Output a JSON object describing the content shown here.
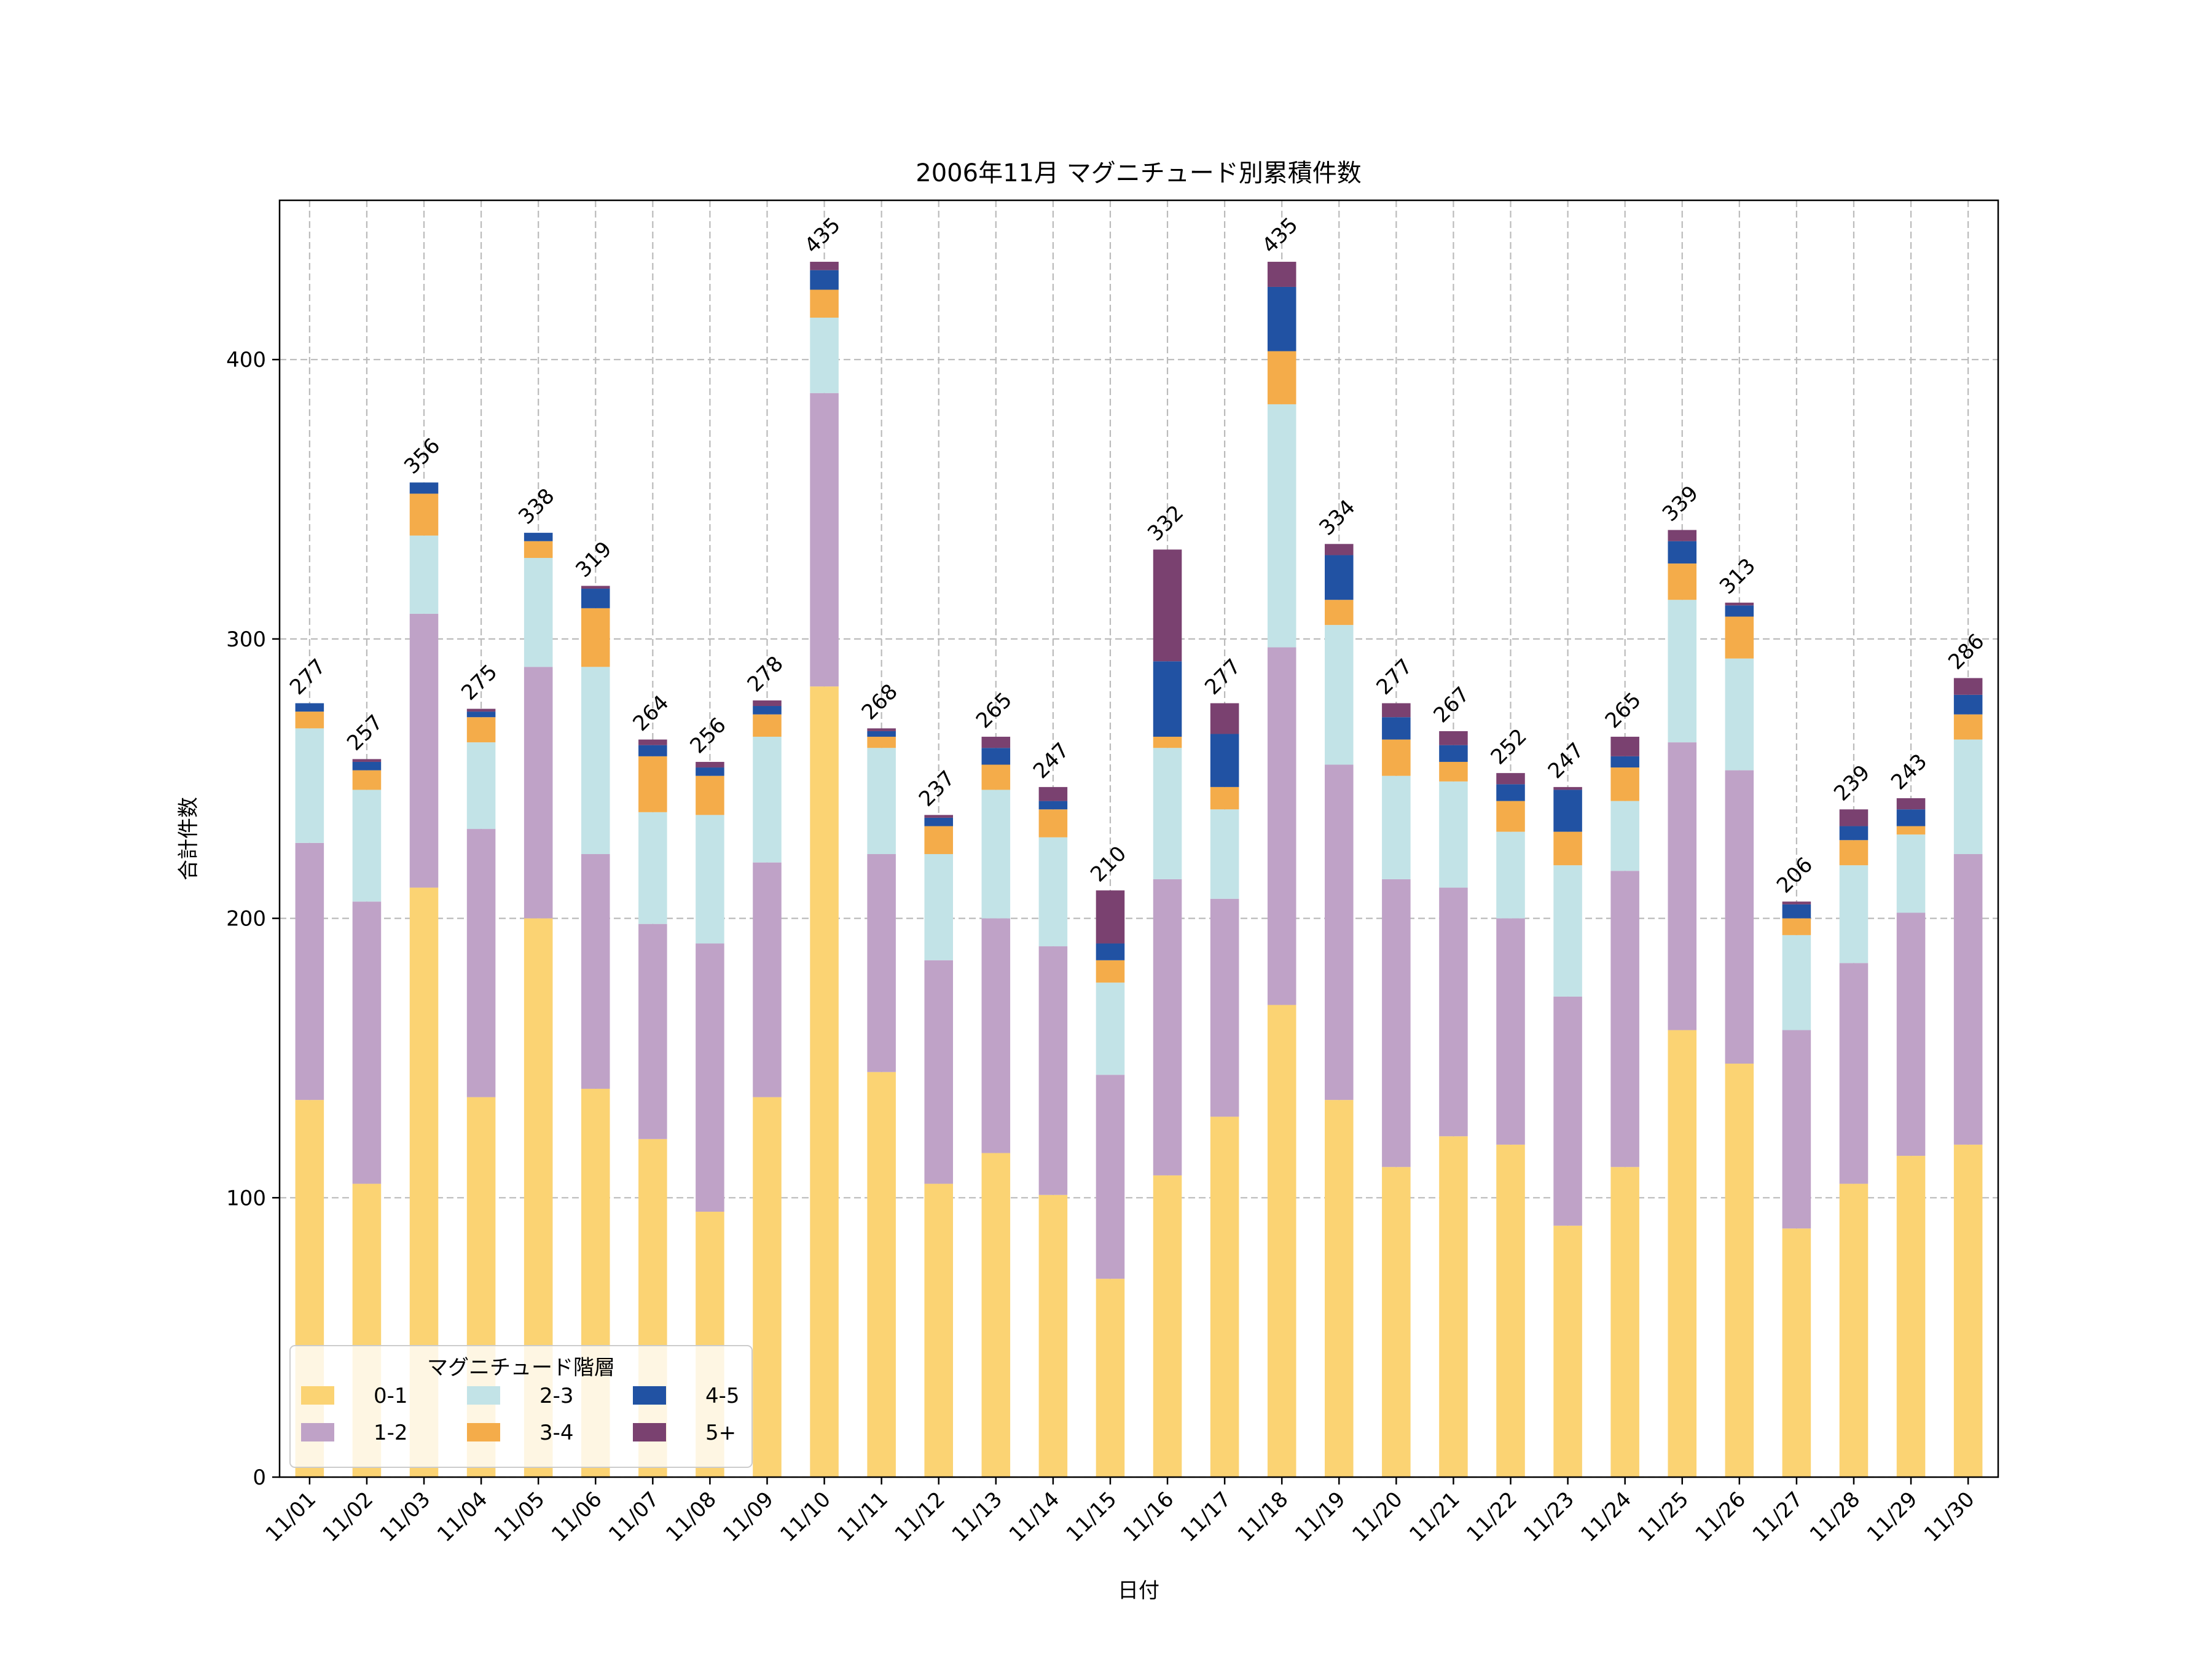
{
  "chart_data": {
    "type": "bar",
    "stacked": true,
    "title": "2006年11月 マグニチュード別累積件数",
    "xlabel": "日付",
    "ylabel": "合計件数",
    "ylim": [
      0,
      457
    ],
    "yticks": [
      0,
      100,
      200,
      300,
      400
    ],
    "grid": true,
    "legend": {
      "title": "マグニチュード階層",
      "placement": "lower-left",
      "columns": 3
    },
    "categories": [
      "11/01",
      "11/02",
      "11/03",
      "11/04",
      "11/05",
      "11/06",
      "11/07",
      "11/08",
      "11/09",
      "11/10",
      "11/11",
      "11/12",
      "11/13",
      "11/14",
      "11/15",
      "11/16",
      "11/17",
      "11/18",
      "11/19",
      "11/20",
      "11/21",
      "11/22",
      "11/23",
      "11/24",
      "11/25",
      "11/26",
      "11/27",
      "11/28",
      "11/29",
      "11/30"
    ],
    "series": [
      {
        "name": "0-1",
        "color": "#FBD373",
        "values": [
          135,
          105,
          211,
          136,
          200,
          139,
          121,
          95,
          136,
          283,
          145,
          105,
          116,
          101,
          71,
          108,
          129,
          169,
          135,
          111,
          122,
          119,
          90,
          111,
          160,
          148,
          89,
          105,
          115,
          119
        ]
      },
      {
        "name": "1-2",
        "color": "#BFA2C7",
        "values": [
          92,
          101,
          98,
          96,
          90,
          84,
          77,
          96,
          84,
          105,
          78,
          80,
          84,
          89,
          73,
          106,
          78,
          128,
          120,
          103,
          89,
          81,
          82,
          106,
          103,
          105,
          71,
          79,
          87,
          104
        ]
      },
      {
        "name": "2-3",
        "color": "#C2E3E7",
        "values": [
          41,
          40,
          28,
          31,
          39,
          67,
          40,
          46,
          45,
          27,
          38,
          38,
          46,
          39,
          33,
          47,
          32,
          87,
          50,
          37,
          38,
          31,
          47,
          25,
          51,
          40,
          34,
          35,
          28,
          41
        ]
      },
      {
        "name": "3-4",
        "color": "#F4AC4A",
        "values": [
          6,
          7,
          15,
          9,
          6,
          21,
          20,
          14,
          8,
          10,
          4,
          10,
          9,
          10,
          8,
          4,
          8,
          19,
          9,
          13,
          7,
          11,
          12,
          12,
          13,
          15,
          6,
          9,
          3,
          9
        ]
      },
      {
        "name": "4-5",
        "color": "#2152A3",
        "values": [
          3,
          3,
          4,
          2,
          3,
          7,
          4,
          3,
          3,
          7,
          2,
          3,
          6,
          3,
          6,
          27,
          19,
          23,
          16,
          8,
          6,
          6,
          15,
          4,
          8,
          4,
          5,
          5,
          6,
          7
        ]
      },
      {
        "name": "5+",
        "color": "#7A4170",
        "values": [
          0,
          1,
          0,
          1,
          0,
          1,
          2,
          2,
          2,
          3,
          1,
          1,
          4,
          5,
          19,
          40,
          11,
          9,
          4,
          5,
          5,
          4,
          1,
          7,
          4,
          1,
          1,
          6,
          4,
          6
        ]
      }
    ],
    "totals": [
      277,
      257,
      356,
      275,
      338,
      319,
      264,
      256,
      278,
      435,
      268,
      237,
      265,
      247,
      210,
      332,
      277,
      435,
      334,
      277,
      267,
      252,
      247,
      265,
      339,
      313,
      206,
      239,
      243,
      286
    ]
  }
}
